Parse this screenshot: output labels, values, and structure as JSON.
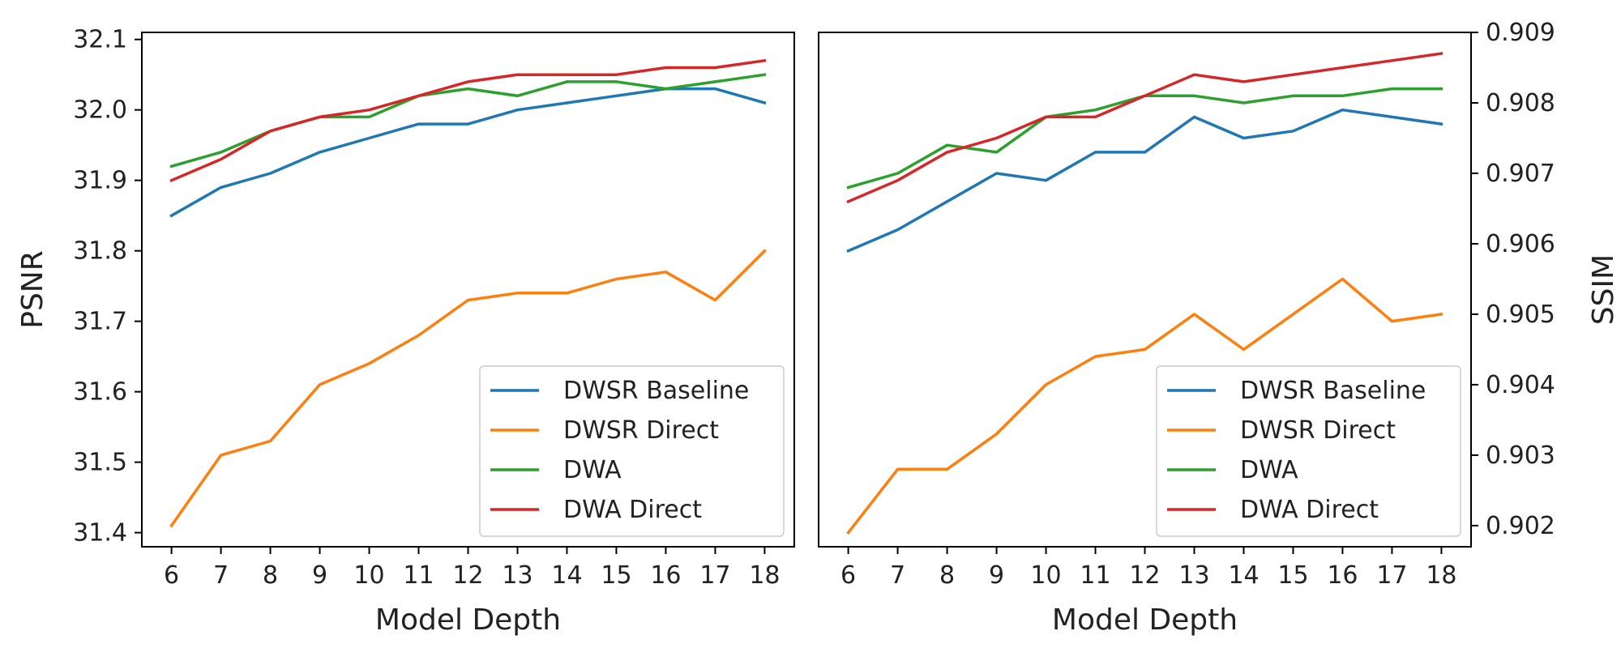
{
  "chart_data": [
    {
      "type": "line",
      "xlabel": "Model Depth",
      "ylabel": "PSNR",
      "x": [
        6,
        7,
        8,
        9,
        10,
        11,
        12,
        13,
        14,
        15,
        16,
        17,
        18
      ],
      "xlim": [
        5.4,
        18.6
      ],
      "ylim": [
        31.38,
        32.11
      ],
      "yticks": [
        31.4,
        31.5,
        31.6,
        31.7,
        31.8,
        31.9,
        32.0,
        32.1
      ],
      "ytick_labels": [
        "31.4",
        "31.5",
        "31.6",
        "31.7",
        "31.8",
        "31.9",
        "32.0",
        "32.1"
      ],
      "y_axis_side": "left",
      "grid": false,
      "legend_position": "lower-right",
      "series": [
        {
          "name": "DWSR Baseline",
          "color": "#1f77b4",
          "values": [
            31.85,
            31.89,
            31.91,
            31.94,
            31.96,
            31.98,
            31.98,
            32.0,
            32.01,
            32.02,
            32.03,
            32.03,
            32.01
          ]
        },
        {
          "name": "DWSR Direct",
          "color": "#ff7f0e",
          "values": [
            31.41,
            31.51,
            31.53,
            31.61,
            31.64,
            31.68,
            31.73,
            31.74,
            31.74,
            31.76,
            31.77,
            31.73,
            31.8
          ]
        },
        {
          "name": "DWA",
          "color": "#2ca02c",
          "values": [
            31.92,
            31.94,
            31.97,
            31.99,
            31.99,
            32.02,
            32.03,
            32.02,
            32.04,
            32.04,
            32.03,
            32.04,
            32.05
          ]
        },
        {
          "name": "DWA Direct",
          "color": "#d62728",
          "values": [
            31.9,
            31.93,
            31.97,
            31.99,
            32.0,
            32.02,
            32.04,
            32.05,
            32.05,
            32.05,
            32.06,
            32.06,
            32.07
          ]
        }
      ]
    },
    {
      "type": "line",
      "xlabel": "Model Depth",
      "ylabel": "SSIM",
      "x": [
        6,
        7,
        8,
        9,
        10,
        11,
        12,
        13,
        14,
        15,
        16,
        17,
        18
      ],
      "xlim": [
        5.4,
        18.6
      ],
      "ylim": [
        0.9017,
        0.909
      ],
      "yticks": [
        0.902,
        0.903,
        0.904,
        0.905,
        0.906,
        0.907,
        0.908,
        0.909
      ],
      "ytick_labels": [
        "0.902",
        "0.903",
        "0.904",
        "0.905",
        "0.906",
        "0.907",
        "0.908",
        "0.909"
      ],
      "y_axis_side": "right",
      "grid": false,
      "legend_position": "lower-right",
      "series": [
        {
          "name": "DWSR Baseline",
          "color": "#1f77b4",
          "values": [
            0.9059,
            0.9062,
            0.9066,
            0.907,
            0.9069,
            0.9073,
            0.9073,
            0.9078,
            0.9075,
            0.9076,
            0.9079,
            0.9078,
            0.9077
          ]
        },
        {
          "name": "DWSR Direct",
          "color": "#ff7f0e",
          "values": [
            0.9019,
            0.9028,
            0.9028,
            0.9033,
            0.904,
            0.9044,
            0.9045,
            0.905,
            0.9045,
            0.905,
            0.9055,
            0.9049,
            0.905
          ]
        },
        {
          "name": "DWA",
          "color": "#2ca02c",
          "values": [
            0.9068,
            0.907,
            0.9074,
            0.9073,
            0.9078,
            0.9079,
            0.9081,
            0.9081,
            0.908,
            0.9081,
            0.9081,
            0.9082,
            0.9082
          ]
        },
        {
          "name": "DWA Direct",
          "color": "#d62728",
          "values": [
            0.9066,
            0.9069,
            0.9073,
            0.9075,
            0.9078,
            0.9078,
            0.9081,
            0.9084,
            0.9083,
            0.9084,
            0.9085,
            0.9086,
            0.9087
          ]
        }
      ]
    }
  ]
}
